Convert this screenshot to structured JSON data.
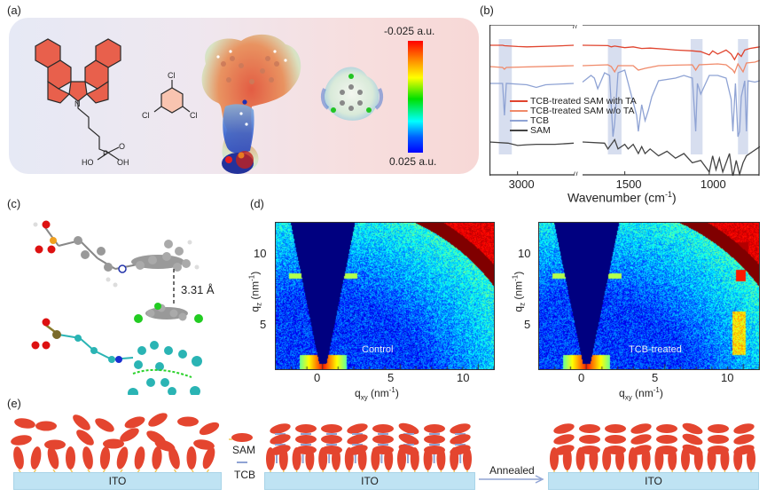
{
  "panels": {
    "a": {
      "label": "(a)",
      "molecules": {
        "sam": {
          "atom_n": "N",
          "atom_p": "P",
          "atom_o": "O",
          "ho_left": "HO",
          "oh_right": "OH"
        },
        "tcb": {
          "cl": "Cl"
        }
      },
      "colorbar": {
        "top_label": "-0.025 a.u.",
        "bottom_label": "0.025 a.u."
      },
      "colors": {
        "sam_fill": "#e8604c",
        "tcb_fill": "#f9c4b0"
      }
    },
    "b": {
      "label": "(b)"
    },
    "c": {
      "label": "(c)",
      "distance_label": "3.31 Å"
    },
    "d": {
      "label": "(d)",
      "maps": [
        {
          "sample_label": "Control",
          "ylabel": "q",
          "ylabel_sub": "z",
          "ylabel_unit": " (nm",
          "ylabel_sup": "-1",
          "ylabel_close": ")",
          "xlabel": "q",
          "xlabel_sub": "xy",
          "xlabel_unit": " (nm",
          "xlabel_sup": "-1",
          "xlabel_close": ")",
          "xticks": [
            "0",
            "5",
            "10"
          ],
          "yticks": [
            "5",
            "10"
          ]
        },
        {
          "sample_label": "TCB-treated",
          "ylabel": "q",
          "ylabel_sub": "z",
          "ylabel_unit": " (nm",
          "ylabel_sup": "-1",
          "ylabel_close": ")",
          "xlabel": "q",
          "xlabel_sub": "xy",
          "xlabel_unit": " (nm",
          "xlabel_sup": "-1",
          "xlabel_close": ")",
          "xticks": [
            "0",
            "5",
            "10"
          ],
          "yticks": [
            "5",
            "10"
          ]
        }
      ],
      "axis_ranges": {
        "qxy": [
          -3,
          11
        ],
        "qz": [
          2,
          12
        ]
      }
    },
    "e": {
      "label": "(e)",
      "legend_sam": "SAM",
      "legend_tcb": "TCB",
      "substrate_label": "ITO",
      "arrow_label": "Annealed",
      "colors": {
        "sam": "#e4452f",
        "tail": "#f1c65a",
        "tcb": "#8fa3d4",
        "ito": "#bfe3f3"
      }
    }
  },
  "chart_data": {
    "type": "line",
    "title": "",
    "xlabel": "Wavenumber",
    "xlabel_unit": " (cm",
    "xlabel_sup": "-1",
    "xlabel_close": ")",
    "ylabel": "",
    "x_reversed": true,
    "x_break": [
      1750,
      2700
    ],
    "xticks": [
      3000,
      1500,
      1000
    ],
    "xlim": [
      3150,
      700
    ],
    "highlight_bands": [
      [
        3040,
        3100
      ],
      [
        1530,
        1600
      ],
      [
        1050,
        1110
      ],
      [
        780,
        830
      ]
    ],
    "series": [
      {
        "name": "TCB-treated SAM with TA",
        "color": "#e0442e",
        "offset": 3.0,
        "points": [
          [
            3150,
            0
          ],
          [
            3080,
            0
          ],
          [
            3070,
            -0.03
          ],
          [
            3000,
            -0.08
          ],
          [
            2950,
            -0.1
          ],
          [
            2800,
            -0.05
          ],
          [
            2700,
            0
          ],
          [
            1750,
            0
          ],
          [
            1600,
            -0.02
          ],
          [
            1580,
            -0.1
          ],
          [
            1560,
            -0.05
          ],
          [
            1500,
            -0.15
          ],
          [
            1450,
            -0.1
          ],
          [
            1400,
            -0.2
          ],
          [
            1350,
            -0.18
          ],
          [
            1250,
            -0.25
          ],
          [
            1200,
            -0.3
          ],
          [
            1100,
            -0.35
          ],
          [
            1050,
            -0.4
          ],
          [
            1000,
            -0.6
          ],
          [
            980,
            -0.35
          ],
          [
            950,
            -0.55
          ],
          [
            900,
            -0.3
          ],
          [
            870,
            -0.55
          ],
          [
            850,
            -0.9
          ],
          [
            830,
            -0.5
          ],
          [
            810,
            -0.7
          ],
          [
            790,
            -0.3
          ],
          [
            760,
            -0.2
          ],
          [
            730,
            -0.15
          ],
          [
            700,
            -0.1
          ]
        ]
      },
      {
        "name": "TCB-treated SAM w/o TA",
        "color": "#f08a6a",
        "offset": 2.0,
        "points": [
          [
            3150,
            0
          ],
          [
            3080,
            -0.05
          ],
          [
            3070,
            -0.15
          ],
          [
            3060,
            -0.05
          ],
          [
            2700,
            0.05
          ],
          [
            1750,
            0.05
          ],
          [
            1600,
            0.1
          ],
          [
            1580,
            0.0
          ],
          [
            1560,
            -0.3
          ],
          [
            1540,
            0.05
          ],
          [
            1450,
            0.05
          ],
          [
            1420,
            -0.2
          ],
          [
            1380,
            -0.1
          ],
          [
            1300,
            0.05
          ],
          [
            1200,
            0.08
          ],
          [
            1100,
            0.1
          ],
          [
            1080,
            -0.2
          ],
          [
            1060,
            0.1
          ],
          [
            950,
            0.15
          ],
          [
            900,
            0.1
          ],
          [
            860,
            -0.2
          ],
          [
            850,
            -0.35
          ],
          [
            830,
            0.15
          ],
          [
            800,
            -0.3
          ],
          [
            780,
            0.2
          ],
          [
            730,
            0.25
          ],
          [
            700,
            0.35
          ]
        ]
      },
      {
        "name": "TCB",
        "color": "#8fa3d4",
        "offset": 1.0,
        "points": [
          [
            3150,
            0
          ],
          [
            3080,
            0
          ],
          [
            3070,
            -1.2
          ],
          [
            3060,
            0
          ],
          [
            2950,
            -0.05
          ],
          [
            2900,
            -0.15
          ],
          [
            2850,
            -0.05
          ],
          [
            2700,
            0
          ],
          [
            1750,
            0.05
          ],
          [
            1700,
            0.3
          ],
          [
            1680,
            0.2
          ],
          [
            1660,
            -0.2
          ],
          [
            1620,
            0.4
          ],
          [
            1590,
            0.3
          ],
          [
            1570,
            -2.0
          ],
          [
            1560,
            -1.5
          ],
          [
            1540,
            0.4
          ],
          [
            1500,
            0.5
          ],
          [
            1430,
            -1.2
          ],
          [
            1420,
            -1.8
          ],
          [
            1400,
            -0.8
          ],
          [
            1380,
            -1.4
          ],
          [
            1360,
            -1.0
          ],
          [
            1340,
            -0.5
          ],
          [
            1300,
            0.1
          ],
          [
            1200,
            0.2
          ],
          [
            1150,
            0.3
          ],
          [
            1100,
            0.2
          ],
          [
            1080,
            -1.8
          ],
          [
            1070,
            0.0
          ],
          [
            1050,
            -0.4
          ],
          [
            1000,
            0.3
          ],
          [
            950,
            0.3
          ],
          [
            900,
            0.2
          ],
          [
            870,
            -0.6
          ],
          [
            860,
            -1.8
          ],
          [
            845,
            0.0
          ],
          [
            830,
            -2.0
          ],
          [
            820,
            -1.8
          ],
          [
            810,
            -0.5
          ],
          [
            790,
            0.1
          ],
          [
            780,
            -1.8
          ],
          [
            770,
            0.1
          ],
          [
            730,
            0.05
          ],
          [
            700,
            0.1
          ]
        ]
      },
      {
        "name": "SAM",
        "color": "#444444",
        "offset": 0.0,
        "points": [
          [
            3150,
            0
          ],
          [
            3050,
            -0.05
          ],
          [
            3000,
            -0.15
          ],
          [
            2950,
            -0.12
          ],
          [
            2900,
            -0.1
          ],
          [
            2800,
            -0.1
          ],
          [
            2700,
            -0.05
          ],
          [
            1750,
            0
          ],
          [
            1620,
            -0.05
          ],
          [
            1600,
            -0.3
          ],
          [
            1580,
            -0.1
          ],
          [
            1560,
            0.1
          ],
          [
            1540,
            -0.3
          ],
          [
            1500,
            -0.1
          ],
          [
            1480,
            -0.3
          ],
          [
            1450,
            -0.1
          ],
          [
            1420,
            -0.5
          ],
          [
            1400,
            -0.2
          ],
          [
            1380,
            -0.5
          ],
          [
            1350,
            -0.3
          ],
          [
            1300,
            -0.6
          ],
          [
            1250,
            -0.4
          ],
          [
            1200,
            -0.7
          ],
          [
            1150,
            -0.5
          ],
          [
            1100,
            -0.9
          ],
          [
            1050,
            -0.8
          ],
          [
            1000,
            -1.3
          ],
          [
            980,
            -0.6
          ],
          [
            960,
            -1.2
          ],
          [
            940,
            -0.7
          ],
          [
            920,
            -1.3
          ],
          [
            880,
            -0.5
          ],
          [
            860,
            -1.5
          ],
          [
            840,
            -0.8
          ],
          [
            820,
            -1.4
          ],
          [
            800,
            -0.9
          ],
          [
            780,
            -0.6
          ],
          [
            740,
            -0.4
          ],
          [
            700,
            -0.2
          ]
        ]
      }
    ]
  }
}
